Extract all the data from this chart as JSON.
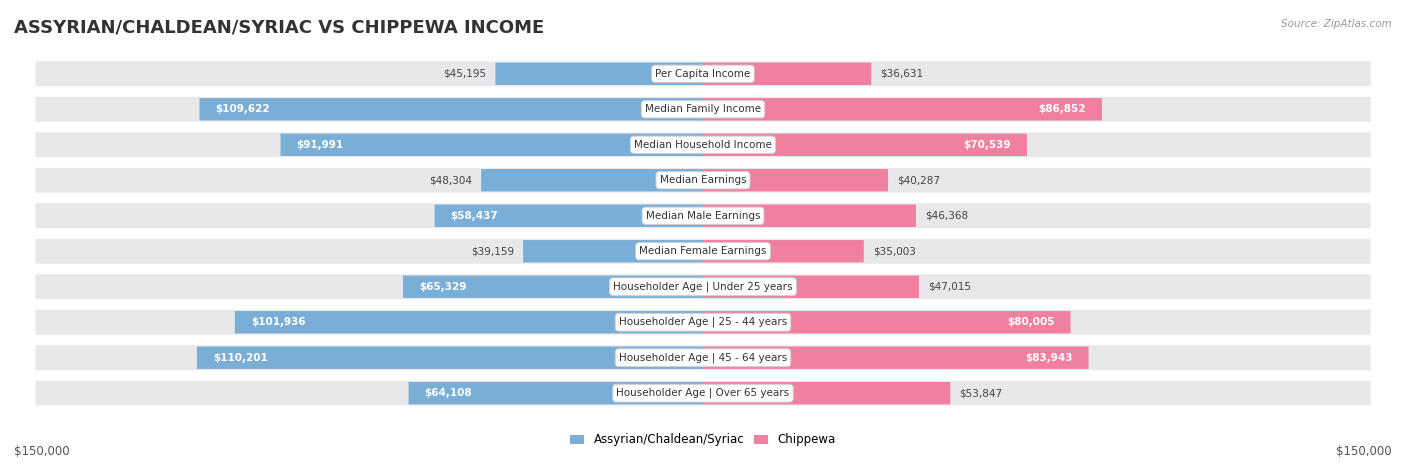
{
  "title": "ASSYRIAN/CHALDEAN/SYRIAC VS CHIPPEWA INCOME",
  "source": "Source: ZipAtlas.com",
  "categories": [
    "Per Capita Income",
    "Median Family Income",
    "Median Household Income",
    "Median Earnings",
    "Median Male Earnings",
    "Median Female Earnings",
    "Householder Age | Under 25 years",
    "Householder Age | 25 - 44 years",
    "Householder Age | 45 - 64 years",
    "Householder Age | Over 65 years"
  ],
  "assyrian_values": [
    45195,
    109622,
    91991,
    48304,
    58437,
    39159,
    65329,
    101936,
    110201,
    64108
  ],
  "chippewa_values": [
    36631,
    86852,
    70539,
    40287,
    46368,
    35003,
    47015,
    80005,
    83943,
    53847
  ],
  "assyrian_labels": [
    "$45,195",
    "$109,622",
    "$91,991",
    "$48,304",
    "$58,437",
    "$39,159",
    "$65,329",
    "$101,936",
    "$110,201",
    "$64,108"
  ],
  "chippewa_labels": [
    "$36,631",
    "$86,852",
    "$70,539",
    "$40,287",
    "$46,368",
    "$35,003",
    "$47,015",
    "$80,005",
    "$83,943",
    "$53,847"
  ],
  "assyrian_color": "#7aaed6",
  "chippewa_color": "#f07fa0",
  "row_bg_color": "#e8e8eb",
  "max_value": 150000,
  "legend_assyrian": "Assyrian/Chaldean/Syriac",
  "legend_chippewa": "Chippewa",
  "xlabel_left": "$150,000",
  "xlabel_right": "$150,000",
  "title_fontsize": 13,
  "category_fontsize": 7.5,
  "value_label_fontsize": 7.5,
  "inside_label_threshold": 55000
}
